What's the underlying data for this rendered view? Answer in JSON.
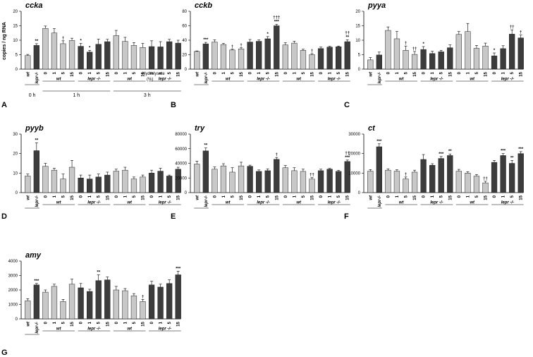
{
  "figure": {
    "ylabel": "copies / ng RNA",
    "note_line1": "Hydrolysate",
    "note_line2": "(%)",
    "time_labels": [
      "0 h",
      "1 h",
      "3 h"
    ],
    "categories": [
      "wt",
      "lepr-/-",
      "0",
      "1",
      "5",
      "15",
      "0",
      "1",
      "5",
      "15",
      "0",
      "1",
      "5",
      "15",
      "0",
      "1",
      "5",
      "15"
    ],
    "group_labels": [
      "wt",
      "lepr -/-",
      "wt",
      "lepr -/-"
    ],
    "colors": {
      "light": "#c8c8c8",
      "dark": "#3c3c3c"
    },
    "bar_colors": [
      "light",
      "dark",
      "light",
      "light",
      "light",
      "light",
      "dark",
      "dark",
      "dark",
      "dark",
      "light",
      "light",
      "light",
      "light",
      "dark",
      "dark",
      "dark",
      "dark"
    ]
  },
  "chart_data": [
    {
      "type": "bar",
      "panel": "A",
      "title": "ccka",
      "ylim": [
        0,
        20
      ],
      "yticks": [
        0,
        5,
        10,
        15,
        20
      ],
      "values": [
        4.7,
        8.2,
        14.1,
        12.5,
        8.8,
        9.9,
        7.9,
        5.9,
        8.6,
        9.5,
        11.6,
        9.6,
        8.2,
        7.5,
        7.8,
        7.7,
        9.5,
        9.0
      ],
      "errors": [
        0.4,
        0.6,
        0.8,
        1.5,
        1.0,
        0.8,
        1.0,
        0.6,
        1.8,
        0.8,
        1.8,
        1.4,
        1.0,
        1.4,
        2.0,
        1.8,
        0.8,
        1.0
      ],
      "significance": [
        "",
        "**",
        "",
        "",
        "†",
        "",
        "*",
        "*",
        "",
        "",
        "",
        "",
        "",
        "",
        "",
        "",
        "",
        ""
      ]
    },
    {
      "type": "bar",
      "panel": "B",
      "title": "cckb",
      "ylim": [
        0,
        80
      ],
      "yticks": [
        0,
        20,
        40,
        60,
        80
      ],
      "values": [
        24.5,
        35.0,
        37.5,
        34.0,
        26.5,
        28.0,
        37.5,
        38.5,
        42.0,
        60.0,
        33.5,
        36.0,
        26.0,
        20.0,
        28.5,
        30.5,
        31.0,
        38.0
      ],
      "errors": [
        0.7,
        2.0,
        3.0,
        1.5,
        1.0,
        1.5,
        3.5,
        2.0,
        3.0,
        2.0,
        3.0,
        2.5,
        1.5,
        1.5,
        2.0,
        1.0,
        1.0,
        2.5
      ],
      "significance": [
        "",
        "***",
        "",
        "",
        "†",
        "†",
        "",
        "",
        "*",
        "†††\n***",
        "",
        "",
        "",
        "†",
        "",
        "",
        "",
        "††\n**"
      ]
    },
    {
      "type": "bar",
      "panel": "C",
      "title": "pyya",
      "ylim": [
        0,
        20
      ],
      "yticks": [
        0,
        5,
        10,
        15,
        20
      ],
      "values": [
        3.2,
        4.9,
        13.4,
        10.5,
        6.5,
        5.1,
        6.8,
        5.4,
        6.0,
        7.4,
        12.0,
        13.0,
        7.2,
        8.0,
        4.6,
        7.1,
        12.1,
        10.8
      ],
      "errors": [
        0.8,
        1.0,
        1.2,
        2.5,
        1.5,
        1.0,
        1.0,
        0.8,
        0.5,
        1.0,
        1.0,
        2.8,
        1.0,
        1.0,
        1.0,
        1.0,
        1.5,
        1.0
      ],
      "significance": [
        "",
        "",
        "",
        "",
        "†",
        "††",
        "*",
        "",
        "",
        "",
        "",
        "",
        "",
        "",
        "*",
        "",
        "††",
        "†"
      ]
    },
    {
      "type": "bar",
      "panel": "D",
      "title": "pyyb",
      "ylim": [
        0,
        30
      ],
      "yticks": [
        0,
        10,
        20,
        30
      ],
      "values": [
        8.5,
        21.5,
        13.5,
        11.5,
        7.0,
        13.0,
        7.5,
        7.0,
        8.0,
        9.0,
        11.0,
        11.5,
        7.0,
        8.0,
        10.0,
        11.0,
        8.5,
        12.0
      ],
      "errors": [
        1.0,
        4.0,
        1.5,
        1.0,
        2.5,
        3.5,
        1.5,
        2.0,
        1.5,
        1.5,
        1.0,
        1.5,
        1.0,
        1.0,
        1.5,
        1.5,
        0.5,
        1.0
      ],
      "significance": [
        "",
        "**",
        "",
        "",
        "",
        "",
        "",
        "",
        "",
        "",
        "",
        "",
        "",
        "",
        "",
        "",
        "",
        ""
      ]
    },
    {
      "type": "bar",
      "panel": "E",
      "title": "try",
      "ylim": [
        0,
        80000
      ],
      "yticks": [
        0,
        20000,
        40000,
        60000,
        80000
      ],
      "values": [
        39000,
        57000,
        32000,
        36500,
        28000,
        36500,
        36000,
        29000,
        30000,
        45500,
        34000,
        30000,
        29000,
        18500,
        30000,
        32000,
        29000,
        42500
      ],
      "errors": [
        4000,
        4000,
        3000,
        3000,
        6000,
        5000,
        1500,
        2000,
        2500,
        2500,
        3000,
        4000,
        3000,
        2000,
        2000,
        1000,
        1500,
        2000
      ],
      "significance": [
        "",
        "**",
        "",
        "",
        "",
        "",
        "",
        "",
        "",
        "†",
        "",
        "",
        "",
        "††",
        "",
        "",
        "",
        "††\n***"
      ]
    },
    {
      "type": "bar",
      "panel": "F",
      "title": "ct",
      "ylim": [
        0,
        30000
      ],
      "yticks": [
        0,
        10000,
        20000,
        30000
      ],
      "values": [
        11000,
        23500,
        11500,
        11000,
        7000,
        10500,
        17000,
        14000,
        17500,
        19000,
        11000,
        10000,
        8500,
        5000,
        15500,
        19000,
        15000,
        20000
      ],
      "errors": [
        800,
        1500,
        700,
        700,
        1000,
        1000,
        2500,
        800,
        1000,
        800,
        900,
        700,
        800,
        800,
        1000,
        1000,
        1500,
        1000
      ],
      "significance": [
        "",
        "***",
        "",
        "",
        "†",
        "",
        "",
        "",
        "***",
        "**",
        "",
        "",
        "",
        "††",
        "",
        "***",
        "**",
        "***"
      ]
    },
    {
      "type": "bar",
      "panel": "G",
      "title": "amy",
      "ylim": [
        0,
        4000
      ],
      "yticks": [
        0,
        1000,
        2000,
        3000,
        4000
      ],
      "values": [
        1250,
        2350,
        1850,
        2250,
        1200,
        2400,
        2150,
        1900,
        2650,
        2700,
        2000,
        1950,
        1600,
        1200,
        2350,
        2200,
        2450,
        3050
      ],
      "errors": [
        150,
        100,
        150,
        150,
        150,
        350,
        300,
        150,
        400,
        200,
        250,
        150,
        150,
        150,
        250,
        200,
        250,
        250
      ],
      "significance": [
        "",
        "***",
        "",
        "",
        "",
        "",
        "",
        "",
        "**",
        "",
        "",
        "",
        "",
        "†",
        "",
        "",
        "",
        "***"
      ]
    }
  ]
}
